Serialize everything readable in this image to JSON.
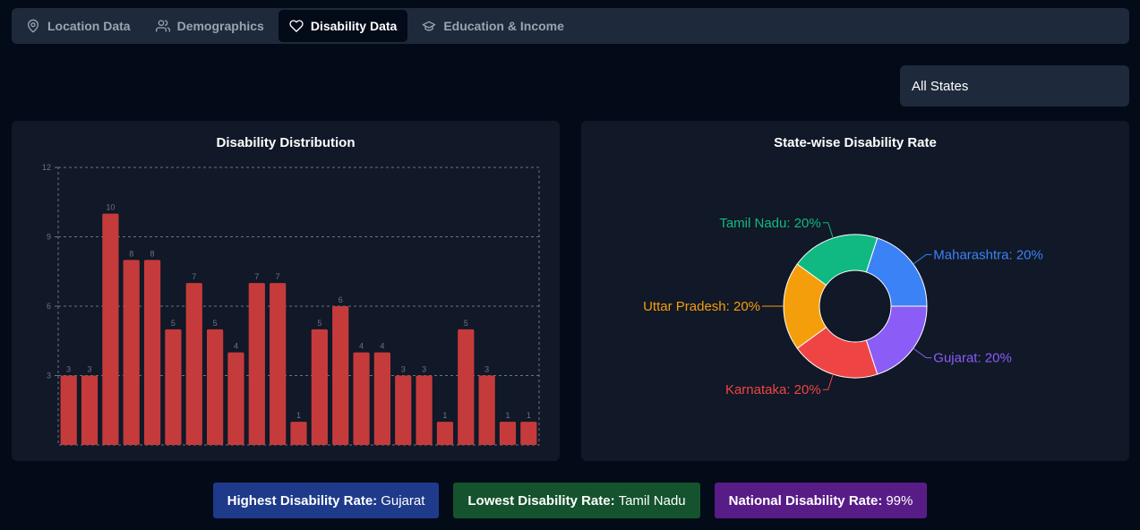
{
  "tabs": [
    {
      "label": "Location Data",
      "icon": "map-pin-icon",
      "active": false
    },
    {
      "label": "Demographics",
      "icon": "users-icon",
      "active": false
    },
    {
      "label": "Disability Data",
      "icon": "heart-icon",
      "active": true
    },
    {
      "label": "Education & Income",
      "icon": "graduation-cap-icon",
      "active": false
    }
  ],
  "filter": {
    "selected": "All States"
  },
  "bar_chart_title": "Disability Distribution",
  "pie_chart_title": "State-wise Disability Rate",
  "chart_data": [
    {
      "type": "bar",
      "title": "Disability Distribution",
      "values": [
        3,
        3,
        10,
        8,
        8,
        5,
        7,
        5,
        4,
        7,
        7,
        1,
        5,
        6,
        4,
        4,
        3,
        3,
        1,
        5,
        3,
        1,
        1
      ],
      "ylim": [
        0,
        12
      ],
      "yticks": [
        3,
        6,
        9,
        12
      ],
      "grid": true,
      "bar_color": "#c53b3b"
    },
    {
      "type": "pie",
      "title": "State-wise Disability Rate",
      "donut": true,
      "slices": [
        {
          "label": "Maharashtra",
          "value": 20,
          "color": "#3b82f6"
        },
        {
          "label": "Gujarat",
          "value": 20,
          "color": "#8b5cf6"
        },
        {
          "label": "Karnataka",
          "value": 20,
          "color": "#ef4444"
        },
        {
          "label": "Uttar Pradesh",
          "value": 20,
          "color": "#f59e0b"
        },
        {
          "label": "Tamil Nadu",
          "value": 20,
          "color": "#10b981"
        }
      ]
    }
  ],
  "stats": {
    "highest_label": "Highest Disability Rate:",
    "highest_value": "Gujarat",
    "lowest_label": "Lowest Disability Rate:",
    "lowest_value": "Tamil Nadu",
    "national_label": "National Disability Rate:",
    "national_value": "99%"
  }
}
